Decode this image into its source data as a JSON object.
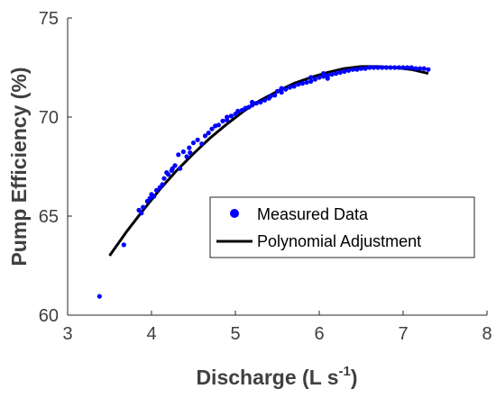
{
  "chart_data": {
    "type": "scatter",
    "title": "",
    "xlabel": "Discharge (L s",
    "xlabel_sup": "-1",
    "xlabel_suffix": ")",
    "ylabel": "Pump Efficiency (%)",
    "xlim": [
      3,
      8
    ],
    "ylim": [
      60,
      75
    ],
    "xticks": [
      "3",
      "4",
      "5",
      "6",
      "7",
      "8"
    ],
    "yticks": [
      "60",
      "65",
      "70",
      "75"
    ],
    "grid": false,
    "legend_position": "center-right",
    "series": [
      {
        "name": "Measured Data",
        "kind": "scatter",
        "color": "#0000ff",
        "points": [
          [
            3.38,
            60.95
          ],
          [
            3.67,
            63.55
          ],
          [
            3.85,
            65.3
          ],
          [
            3.88,
            65.15
          ],
          [
            3.9,
            65.45
          ],
          [
            3.95,
            65.75
          ],
          [
            3.98,
            65.9
          ],
          [
            4.0,
            66.1
          ],
          [
            4.03,
            66.0
          ],
          [
            4.06,
            66.3
          ],
          [
            4.1,
            66.45
          ],
          [
            4.13,
            66.6
          ],
          [
            4.15,
            66.9
          ],
          [
            4.18,
            67.2
          ],
          [
            4.2,
            67.1
          ],
          [
            4.24,
            67.3
          ],
          [
            4.28,
            67.55
          ],
          [
            4.32,
            68.1
          ],
          [
            4.34,
            67.4
          ],
          [
            4.38,
            68.25
          ],
          [
            4.42,
            68.0
          ],
          [
            4.45,
            68.45
          ],
          [
            4.5,
            68.7
          ],
          [
            4.55,
            68.85
          ],
          [
            4.6,
            68.65
          ],
          [
            4.64,
            69.05
          ],
          [
            4.68,
            69.2
          ],
          [
            4.72,
            69.4
          ],
          [
            4.76,
            69.55
          ],
          [
            4.8,
            69.6
          ],
          [
            4.85,
            69.8
          ],
          [
            4.9,
            69.85
          ],
          [
            4.95,
            70.05
          ],
          [
            5.0,
            70.15
          ],
          [
            5.03,
            70.3
          ],
          [
            5.08,
            70.35
          ],
          [
            5.12,
            70.45
          ],
          [
            5.16,
            70.5
          ],
          [
            5.2,
            70.6
          ],
          [
            5.25,
            70.7
          ],
          [
            5.3,
            70.75
          ],
          [
            5.35,
            70.85
          ],
          [
            5.4,
            70.95
          ],
          [
            5.42,
            71.05
          ],
          [
            5.47,
            71.1
          ],
          [
            5.5,
            71.3
          ],
          [
            5.55,
            71.25
          ],
          [
            5.6,
            71.4
          ],
          [
            5.65,
            71.5
          ],
          [
            5.7,
            71.55
          ],
          [
            5.75,
            71.65
          ],
          [
            5.8,
            71.7
          ],
          [
            5.85,
            71.75
          ],
          [
            5.9,
            71.8
          ],
          [
            5.95,
            71.9
          ],
          [
            6.0,
            72.0
          ],
          [
            6.05,
            72.05
          ],
          [
            6.1,
            72.1
          ],
          [
            6.15,
            72.15
          ],
          [
            6.2,
            72.2
          ],
          [
            6.25,
            72.25
          ],
          [
            6.3,
            72.3
          ],
          [
            6.35,
            72.35
          ],
          [
            6.4,
            72.4
          ],
          [
            6.45,
            72.4
          ],
          [
            6.5,
            72.45
          ],
          [
            6.55,
            72.45
          ],
          [
            6.6,
            72.5
          ],
          [
            6.65,
            72.5
          ],
          [
            6.7,
            72.5
          ],
          [
            6.75,
            72.5
          ],
          [
            6.8,
            72.5
          ],
          [
            6.85,
            72.5
          ],
          [
            6.9,
            72.5
          ],
          [
            6.95,
            72.5
          ],
          [
            7.0,
            72.5
          ],
          [
            7.05,
            72.5
          ],
          [
            7.1,
            72.5
          ],
          [
            7.15,
            72.45
          ],
          [
            7.2,
            72.45
          ],
          [
            7.25,
            72.45
          ],
          [
            7.3,
            72.4
          ],
          [
            5.9,
            72.0
          ],
          [
            6.05,
            72.2
          ],
          [
            6.1,
            71.95
          ],
          [
            5.55,
            71.45
          ],
          [
            5.2,
            70.75
          ],
          [
            4.9,
            70.0
          ],
          [
            4.46,
            68.2
          ],
          [
            4.25,
            67.4
          ]
        ]
      },
      {
        "name": "Polynomial Adjustment",
        "kind": "line",
        "color": "#000000",
        "x": [
          3.5,
          3.7,
          3.9,
          4.1,
          4.3,
          4.5,
          4.7,
          4.9,
          5.1,
          5.3,
          5.5,
          5.7,
          5.9,
          6.1,
          6.3,
          6.5,
          6.7,
          6.9,
          7.1,
          7.3
        ],
        "y": [
          63.0,
          64.2,
          65.3,
          66.35,
          67.3,
          68.15,
          68.95,
          69.65,
          70.3,
          70.85,
          71.3,
          71.7,
          72.0,
          72.25,
          72.45,
          72.55,
          72.55,
          72.5,
          72.4,
          72.2
        ]
      }
    ]
  }
}
